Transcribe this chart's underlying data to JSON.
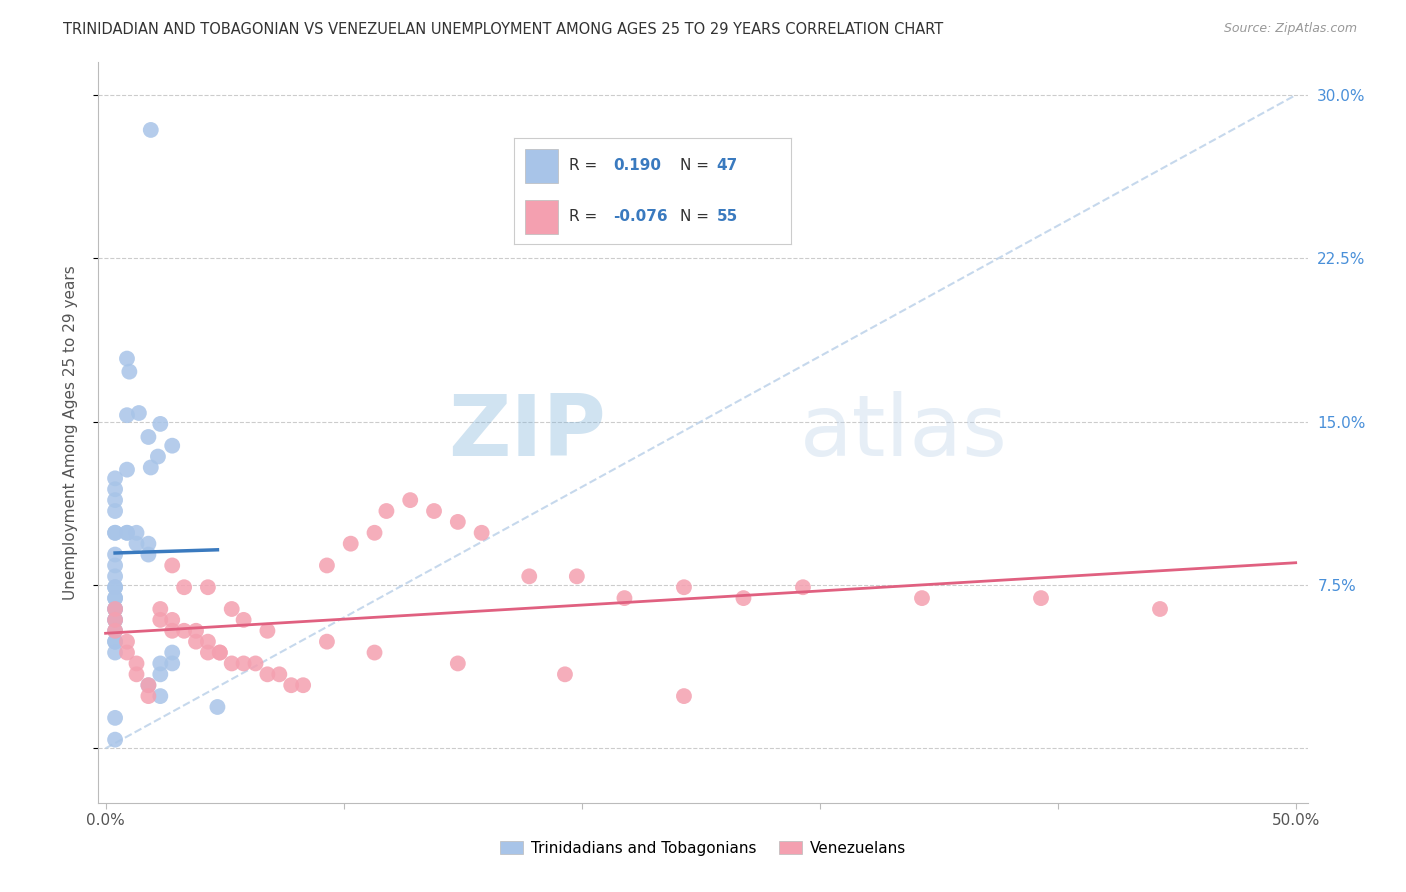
{
  "title": "TRINIDADIAN AND TOBAGONIAN VS VENEZUELAN UNEMPLOYMENT AMONG AGES 25 TO 29 YEARS CORRELATION CHART",
  "source": "Source: ZipAtlas.com",
  "ylabel": "Unemployment Among Ages 25 to 29 years",
  "yticks": [
    0.0,
    0.075,
    0.15,
    0.225,
    0.3
  ],
  "ytick_labels": [
    "",
    "7.5%",
    "15.0%",
    "22.5%",
    "30.0%"
  ],
  "xticks": [
    0.0,
    0.1,
    0.2,
    0.3,
    0.4,
    0.5
  ],
  "xtick_labels": [
    "0.0%",
    "",
    "",
    "",
    "",
    "50.0%"
  ],
  "xlim": [
    -0.003,
    0.505
  ],
  "ylim": [
    -0.025,
    0.315
  ],
  "r_blue": "0.190",
  "n_blue": "47",
  "r_pink": "-0.076",
  "n_pink": "55",
  "blue_color": "#a8c4e8",
  "pink_color": "#f4a0b0",
  "blue_line_color": "#3a7abf",
  "pink_line_color": "#e06080",
  "ref_line_color": "#b8cfe8",
  "watermark_color": "#d0e0f4",
  "legend_labels": [
    "Trinidadians and Tobagonians",
    "Venezuelans"
  ],
  "blue_scatter_x": [
    0.019,
    0.009,
    0.01,
    0.014,
    0.009,
    0.023,
    0.018,
    0.028,
    0.022,
    0.019,
    0.009,
    0.004,
    0.004,
    0.004,
    0.004,
    0.004,
    0.004,
    0.009,
    0.009,
    0.013,
    0.013,
    0.018,
    0.018,
    0.004,
    0.004,
    0.004,
    0.004,
    0.004,
    0.004,
    0.004,
    0.004,
    0.004,
    0.004,
    0.004,
    0.004,
    0.004,
    0.004,
    0.004,
    0.028,
    0.028,
    0.023,
    0.023,
    0.018,
    0.023,
    0.047,
    0.004,
    0.004
  ],
  "blue_scatter_y": [
    0.284,
    0.179,
    0.173,
    0.154,
    0.153,
    0.149,
    0.143,
    0.139,
    0.134,
    0.129,
    0.128,
    0.124,
    0.119,
    0.114,
    0.109,
    0.099,
    0.099,
    0.099,
    0.099,
    0.099,
    0.094,
    0.094,
    0.089,
    0.089,
    0.084,
    0.079,
    0.074,
    0.074,
    0.069,
    0.069,
    0.064,
    0.064,
    0.059,
    0.059,
    0.054,
    0.049,
    0.049,
    0.044,
    0.044,
    0.039,
    0.039,
    0.034,
    0.029,
    0.024,
    0.019,
    0.014,
    0.004
  ],
  "pink_scatter_x": [
    0.004,
    0.004,
    0.004,
    0.009,
    0.009,
    0.013,
    0.013,
    0.018,
    0.018,
    0.023,
    0.023,
    0.028,
    0.028,
    0.033,
    0.038,
    0.038,
    0.043,
    0.043,
    0.048,
    0.048,
    0.053,
    0.058,
    0.063,
    0.068,
    0.073,
    0.078,
    0.083,
    0.093,
    0.103,
    0.113,
    0.118,
    0.128,
    0.138,
    0.148,
    0.158,
    0.178,
    0.198,
    0.218,
    0.243,
    0.268,
    0.293,
    0.343,
    0.393,
    0.443,
    0.028,
    0.033,
    0.043,
    0.053,
    0.058,
    0.068,
    0.093,
    0.113,
    0.148,
    0.193,
    0.243
  ],
  "pink_scatter_y": [
    0.064,
    0.059,
    0.054,
    0.049,
    0.044,
    0.039,
    0.034,
    0.029,
    0.024,
    0.064,
    0.059,
    0.059,
    0.054,
    0.054,
    0.049,
    0.054,
    0.049,
    0.044,
    0.044,
    0.044,
    0.039,
    0.039,
    0.039,
    0.034,
    0.034,
    0.029,
    0.029,
    0.084,
    0.094,
    0.099,
    0.109,
    0.114,
    0.109,
    0.104,
    0.099,
    0.079,
    0.079,
    0.069,
    0.074,
    0.069,
    0.074,
    0.069,
    0.069,
    0.064,
    0.084,
    0.074,
    0.074,
    0.064,
    0.059,
    0.054,
    0.049,
    0.044,
    0.039,
    0.034,
    0.024
  ]
}
